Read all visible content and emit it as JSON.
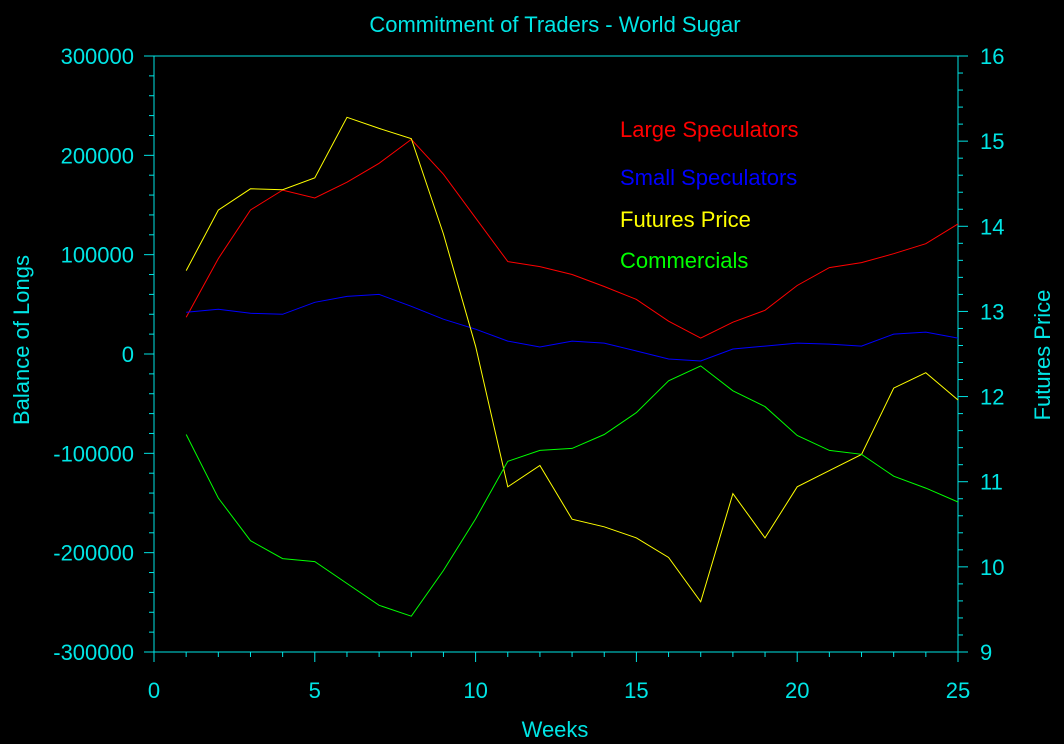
{
  "chart_data": {
    "type": "line",
    "title": "Commitment of Traders - World Sugar",
    "xlabel": "Weeks",
    "ylabel_left": "Balance of Longs",
    "ylabel_right": "Futures Price",
    "xlim": [
      0,
      25
    ],
    "ylim_left": [
      -300000,
      300000
    ],
    "ylim_right": [
      9,
      16
    ],
    "x_ticks": [
      0,
      5,
      10,
      15,
      20,
      25
    ],
    "y_ticks_left": [
      300000,
      200000,
      100000,
      0,
      -100000,
      -200000,
      -300000
    ],
    "y_ticks_right": [
      16,
      15,
      14,
      13,
      12,
      11,
      10,
      9
    ],
    "grid": false,
    "legend_placement": "top-right",
    "colors": {
      "background": "#000000",
      "axis": "#00e5e5",
      "large_speculators": "#ff0000",
      "small_speculators": "#0000ff",
      "futures_price": "#ffff00",
      "commercials": "#00ff00"
    },
    "x": [
      1,
      2,
      3,
      4,
      5,
      6,
      7,
      8,
      9,
      10,
      11,
      12,
      13,
      14,
      15,
      16,
      17,
      18,
      19,
      20,
      21,
      22,
      23,
      24,
      25
    ],
    "series": [
      {
        "name": "Large Speculators",
        "axis": "left",
        "color": "#ff0000",
        "values": [
          37000,
          96000,
          145000,
          165000,
          157000,
          173000,
          192000,
          216000,
          181000,
          137000,
          93000,
          88000,
          80000,
          68000,
          55000,
          33000,
          16000,
          32000,
          44000,
          69000,
          87000,
          92000,
          101000,
          111000,
          131000
        ]
      },
      {
        "name": "Small Speculators",
        "axis": "left",
        "color": "#0000ff",
        "values": [
          42000,
          45000,
          41000,
          40000,
          52000,
          58000,
          60000,
          48000,
          35000,
          25000,
          13000,
          7000,
          13000,
          11000,
          3000,
          -5000,
          -7000,
          5000,
          8000,
          11000,
          10000,
          8000,
          20000,
          22000,
          16000
        ]
      },
      {
        "name": "Futures Price",
        "axis": "right",
        "color": "#ffff00",
        "values": [
          13.48,
          14.19,
          14.44,
          14.43,
          14.57,
          15.28,
          15.15,
          15.03,
          13.91,
          12.59,
          10.94,
          11.19,
          10.56,
          10.47,
          10.34,
          10.11,
          9.59,
          10.86,
          10.34,
          10.94,
          11.13,
          11.32,
          12.1,
          12.28,
          11.96
        ]
      },
      {
        "name": "Commercials",
        "axis": "left",
        "color": "#00ff00",
        "values": [
          -81000,
          -145000,
          -188000,
          -206000,
          -209000,
          -231000,
          -253000,
          -264000,
          -218000,
          -166000,
          -108000,
          -97000,
          -95000,
          -81000,
          -59000,
          -27000,
          -12000,
          -37000,
          -53000,
          -82000,
          -97000,
          -101000,
          -123000,
          -135000,
          -149000
        ]
      }
    ]
  }
}
